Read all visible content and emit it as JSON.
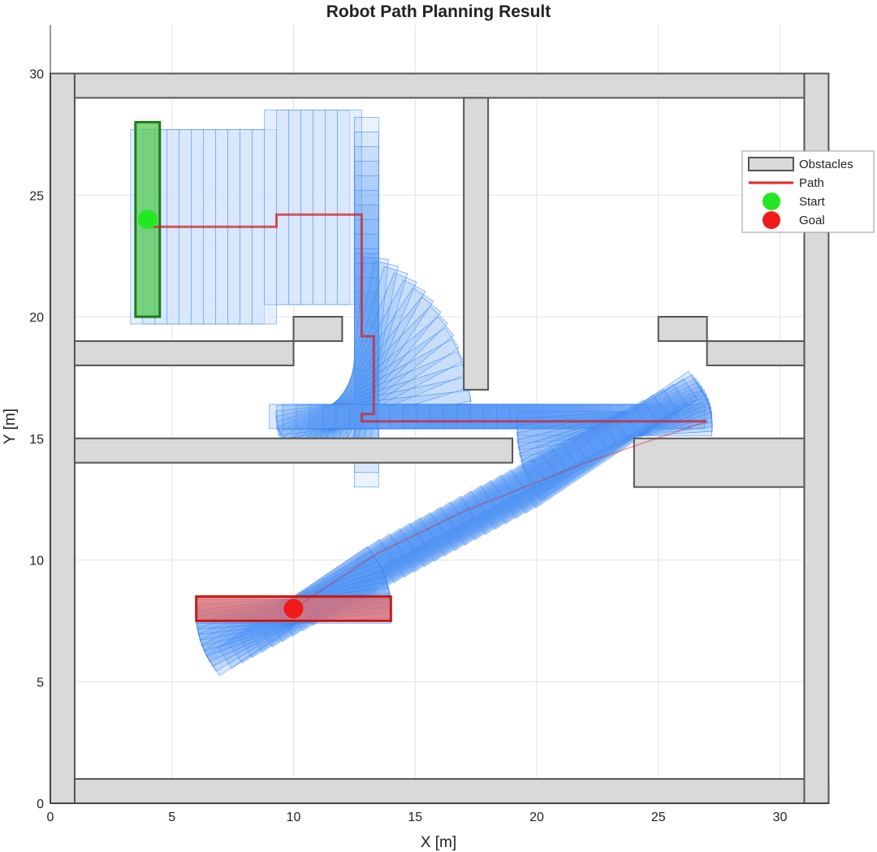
{
  "chart_data": {
    "type": "scatter",
    "title": "Robot Path Planning Result",
    "xlabel": "X [m]",
    "ylabel": "Y [m]",
    "xlim": [
      0,
      32
    ],
    "ylim": [
      0,
      32
    ],
    "xticks": [
      0,
      5,
      10,
      15,
      20,
      25,
      30
    ],
    "yticks": [
      0,
      5,
      10,
      15,
      20,
      25,
      30
    ],
    "grid": true,
    "legend": {
      "position": "top-right",
      "entries": [
        {
          "label": "Obstacles",
          "kind": "rect",
          "color": "#d9d9d9",
          "edge": "#555555"
        },
        {
          "label": "Path",
          "kind": "line",
          "color": "#e8231f"
        },
        {
          "label": "Start",
          "kind": "dot",
          "color": "#22e822"
        },
        {
          "label": "Goal",
          "kind": "dot",
          "color": "#f01a1a"
        }
      ]
    },
    "obstacles": [
      {
        "x": 0,
        "y": 0,
        "w": 32,
        "h": 1
      },
      {
        "x": 0,
        "y": 0,
        "w": 1,
        "h": 30
      },
      {
        "x": 1,
        "y": 29,
        "w": 30,
        "h": 1
      },
      {
        "x": 31,
        "y": 0,
        "w": 1,
        "h": 30
      },
      {
        "x": 1,
        "y": 18,
        "w": 9,
        "h": 1
      },
      {
        "x": 10,
        "y": 19,
        "w": 2,
        "h": 1
      },
      {
        "x": 17,
        "y": 17,
        "w": 1,
        "h": 12
      },
      {
        "x": 25,
        "y": 19,
        "w": 2,
        "h": 1
      },
      {
        "x": 27,
        "y": 18,
        "w": 4,
        "h": 1
      },
      {
        "x": 1,
        "y": 14,
        "w": 18,
        "h": 1
      },
      {
        "x": 24,
        "y": 13,
        "w": 7,
        "h": 2
      }
    ],
    "path": {
      "name": "Path",
      "x": [
        4,
        9.3,
        9.3,
        12.8,
        12.8,
        13.3,
        13.3,
        12.8,
        12.8,
        27
      ],
      "y": [
        23.7,
        23.7,
        24.2,
        24.2,
        19.2,
        19.2,
        16.0,
        16.0,
        15.7,
        15.7
      ]
    },
    "segment2": {
      "x": [
        27,
        22,
        17,
        13.5,
        10
      ],
      "y": [
        15.7,
        14,
        12,
        10.3,
        8
      ]
    },
    "start": {
      "x": 4,
      "y": 24,
      "footprint": {
        "x": 3.5,
        "y": 20,
        "w": 1,
        "h": 8
      }
    },
    "goal": {
      "x": 10,
      "y": 8,
      "footprint": {
        "x": 6,
        "y": 7.5,
        "w": 8,
        "h": 1
      }
    },
    "colors": {
      "obstacle_fill": "#d9d9d9",
      "obstacle_edge": "#555555",
      "footprint_fill": "#cfe2fb",
      "footprint_edge": "#3b86f0",
      "swept_fill": "#5b9cf5",
      "path": "#d0212a",
      "start_fill": "#5dcb5d",
      "start_edge": "#1d7a1d",
      "goal_fill": "#e56a6a",
      "goal_edge": "#c41a1a",
      "grid": "#e4e4e4"
    }
  }
}
